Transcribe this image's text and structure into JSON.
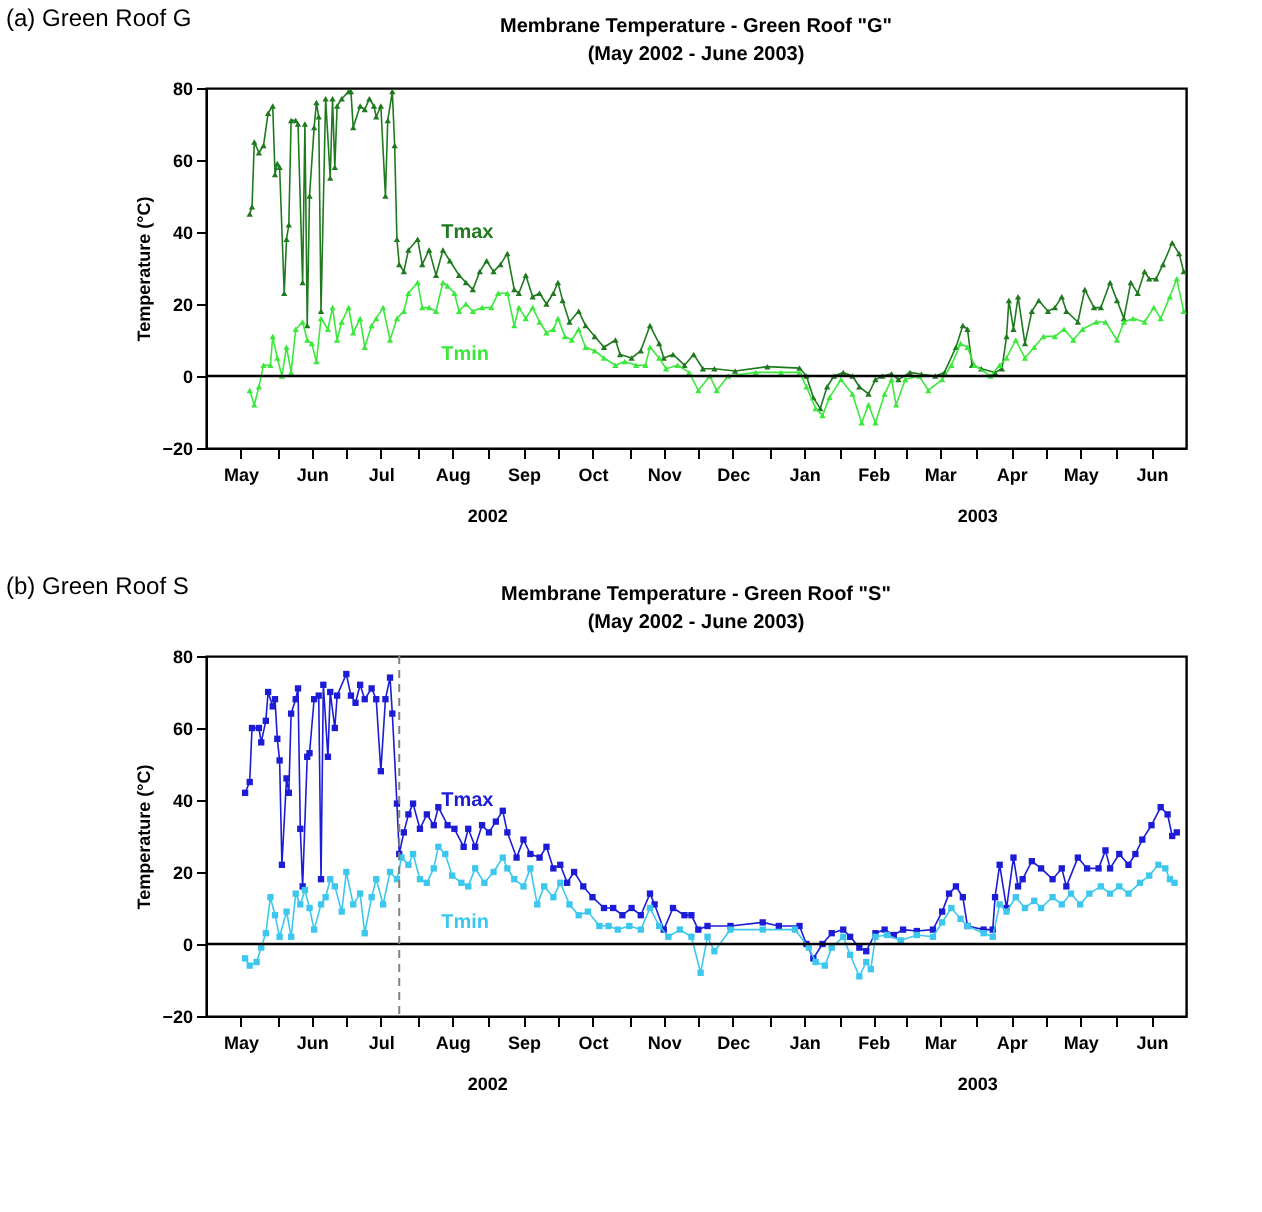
{
  "chart_data": [
    {
      "type": "line",
      "title": "Membrane Temperature - Green Roof \"G\"",
      "subtitle": "(May 2002 - June 2003)",
      "ylabel": "Temperature (°C)",
      "annotations": [
        "(a) Green Roof G",
        "2002",
        "2003"
      ],
      "marker": "triangle",
      "grid": false,
      "xlim": [
        "2002-05-01",
        "2003-07-01"
      ],
      "ylim": [
        -20,
        80
      ],
      "yticks": [
        -20,
        0,
        20,
        40,
        60,
        80
      ],
      "xticks": [
        {
          "value": "2002-05-16",
          "label": "May"
        },
        {
          "value": "2002-06-01",
          "label": null
        },
        {
          "value": "2002-06-16",
          "label": "Jun"
        },
        {
          "value": "2002-07-01",
          "label": null
        },
        {
          "value": "2002-07-16",
          "label": "Jul"
        },
        {
          "value": "2002-08-01",
          "label": null
        },
        {
          "value": "2002-08-16",
          "label": "Aug"
        },
        {
          "value": "2002-09-01",
          "label": null
        },
        {
          "value": "2002-09-16",
          "label": "Sep"
        },
        {
          "value": "2002-10-01",
          "label": null
        },
        {
          "value": "2002-10-16",
          "label": "Oct"
        },
        {
          "value": "2002-11-01",
          "label": null
        },
        {
          "value": "2002-11-16",
          "label": "Nov"
        },
        {
          "value": "2002-12-01",
          "label": null
        },
        {
          "value": "2002-12-16",
          "label": "Dec"
        },
        {
          "value": "2003-01-01",
          "label": null
        },
        {
          "value": "2003-01-16",
          "label": "Jan"
        },
        {
          "value": "2003-02-01",
          "label": null
        },
        {
          "value": "2003-02-15",
          "label": "Feb"
        },
        {
          "value": "2003-03-01",
          "label": null
        },
        {
          "value": "2003-03-16",
          "label": "Mar"
        },
        {
          "value": "2003-04-01",
          "label": null
        },
        {
          "value": "2003-04-16",
          "label": "Apr"
        },
        {
          "value": "2003-05-01",
          "label": null
        },
        {
          "value": "2003-05-16",
          "label": "May"
        },
        {
          "value": "2003-06-01",
          "label": null
        },
        {
          "value": "2003-06-16",
          "label": "Jun"
        }
      ],
      "ref_lines": [
        {
          "axis": "y",
          "value": 0,
          "color": "#000000",
          "line_style": "solid"
        }
      ],
      "series": [
        {
          "name": "Tmax",
          "color": "#1f7a1f",
          "x": [
            "2002-05-20",
            "2002-05-21",
            "2002-05-22",
            "2002-05-24",
            "2002-05-26",
            "2002-05-28",
            "2002-05-30",
            "2002-05-31",
            "2002-06-01",
            "2002-06-02",
            "2002-06-04",
            "2002-06-05",
            "2002-06-06",
            "2002-06-07",
            "2002-06-09",
            "2002-06-10",
            "2002-06-12",
            "2002-06-13",
            "2002-06-14",
            "2002-06-15",
            "2002-06-17",
            "2002-06-18",
            "2002-06-19",
            "2002-06-20",
            "2002-06-22",
            "2002-06-24",
            "2002-06-25",
            "2002-06-26",
            "2002-06-27",
            "2002-06-29",
            "2002-07-02",
            "2002-07-03",
            "2002-07-04",
            "2002-07-07",
            "2002-07-09",
            "2002-07-11",
            "2002-07-13",
            "2002-07-14",
            "2002-07-16",
            "2002-07-18",
            "2002-07-19",
            "2002-07-21",
            "2002-07-22",
            "2002-07-23",
            "2002-07-24",
            "2002-07-26",
            "2002-07-28",
            "2002-08-01",
            "2002-08-03",
            "2002-08-06",
            "2002-08-09",
            "2002-08-12",
            "2002-08-15",
            "2002-08-19",
            "2002-08-22",
            "2002-08-25",
            "2002-08-28",
            "2002-08-31",
            "2002-09-03",
            "2002-09-06",
            "2002-09-09",
            "2002-09-12",
            "2002-09-14",
            "2002-09-17",
            "2002-09-20",
            "2002-09-23",
            "2002-09-26",
            "2002-09-29",
            "2002-10-01",
            "2002-10-03",
            "2002-10-06",
            "2002-10-10",
            "2002-10-13",
            "2002-10-17",
            "2002-10-21",
            "2002-10-26",
            "2002-10-28",
            "2002-11-02",
            "2002-11-06",
            "2002-11-10",
            "2002-11-14",
            "2002-11-16",
            "2002-11-20",
            "2002-11-25",
            "2002-11-29",
            "2002-12-03",
            "2002-12-08",
            "2002-12-17",
            "2002-12-31",
            "2003-01-14",
            "2003-01-17",
            "2003-01-20",
            "2003-01-23",
            "2003-01-26",
            "2003-01-29",
            "2003-02-02",
            "2003-02-06",
            "2003-02-09",
            "2003-02-13",
            "2003-02-16",
            "2003-02-19",
            "2003-02-23",
            "2003-02-26",
            "2003-03-03",
            "2003-03-08",
            "2003-03-14",
            "2003-03-18",
            "2003-03-23",
            "2003-03-26",
            "2003-03-28",
            "2003-03-30",
            "2003-04-03",
            "2003-04-09",
            "2003-04-12",
            "2003-04-14",
            "2003-04-15",
            "2003-04-17",
            "2003-04-19",
            "2003-04-22",
            "2003-04-25",
            "2003-04-28",
            "2003-05-02",
            "2003-05-05",
            "2003-05-08",
            "2003-05-10",
            "2003-05-15",
            "2003-05-18",
            "2003-05-22",
            "2003-05-25",
            "2003-05-29",
            "2003-06-01",
            "2003-06-04",
            "2003-06-07",
            "2003-06-10",
            "2003-06-13",
            "2003-06-15",
            "2003-06-18",
            "2003-06-21",
            "2003-06-25",
            "2003-06-28",
            "2003-06-30"
          ],
          "values": [
            45,
            47,
            65,
            62,
            64,
            73,
            75,
            56,
            59,
            58,
            23,
            38,
            42,
            71,
            71,
            70,
            26,
            70,
            14,
            50,
            69,
            76,
            72,
            18,
            77,
            55,
            77,
            58,
            75,
            77,
            79,
            79,
            69,
            75,
            74,
            77,
            75,
            72,
            75,
            50,
            71,
            79,
            64,
            38,
            31,
            29,
            35,
            38,
            31,
            35,
            28,
            35,
            32,
            28,
            26,
            24,
            29,
            32,
            29,
            31,
            34,
            24,
            23,
            28,
            22,
            23,
            20,
            23,
            26,
            21,
            15,
            18,
            14,
            11,
            8,
            10,
            6,
            5,
            7,
            14,
            9,
            5,
            6,
            3,
            6,
            2,
            2,
            1.4,
            2.6,
            2.2,
            0,
            -6,
            -9,
            -3,
            0,
            1,
            0,
            -3,
            -5,
            -1,
            0,
            0.6,
            -1,
            1,
            0.5,
            0,
            1,
            8,
            14,
            13,
            3,
            2,
            1,
            2,
            11,
            21,
            13,
            22,
            9,
            18,
            21,
            18,
            19,
            22,
            18,
            15,
            24,
            19,
            19,
            26,
            21,
            16,
            26,
            23,
            29,
            27,
            27,
            31,
            37,
            34,
            29
          ]
        },
        {
          "name": "Tmin",
          "color": "#3be83b",
          "x": [
            "2002-05-20",
            "2002-05-22",
            "2002-05-24",
            "2002-05-26",
            "2002-05-29",
            "2002-05-30",
            "2002-06-01",
            "2002-06-03",
            "2002-06-05",
            "2002-06-07",
            "2002-06-09",
            "2002-06-12",
            "2002-06-14",
            "2002-06-16",
            "2002-06-18",
            "2002-06-20",
            "2002-06-23",
            "2002-06-25",
            "2002-06-27",
            "2002-06-29",
            "2002-07-02",
            "2002-07-04",
            "2002-07-07",
            "2002-07-09",
            "2002-07-12",
            "2002-07-14",
            "2002-07-17",
            "2002-07-20",
            "2002-07-23",
            "2002-07-26",
            "2002-07-28",
            "2002-08-01",
            "2002-08-03",
            "2002-08-06",
            "2002-08-09",
            "2002-08-12",
            "2002-08-14",
            "2002-08-17",
            "2002-08-19",
            "2002-08-22",
            "2002-08-25",
            "2002-08-29",
            "2002-09-02",
            "2002-09-05",
            "2002-09-09",
            "2002-09-12",
            "2002-09-14",
            "2002-09-17",
            "2002-09-20",
            "2002-09-23",
            "2002-09-26",
            "2002-09-29",
            "2002-10-01",
            "2002-10-04",
            "2002-10-07",
            "2002-10-10",
            "2002-10-13",
            "2002-10-17",
            "2002-10-21",
            "2002-10-26",
            "2002-10-30",
            "2002-11-04",
            "2002-11-08",
            "2002-11-10",
            "2002-11-14",
            "2002-11-17",
            "2002-11-22",
            "2002-11-27",
            "2002-12-01",
            "2002-12-06",
            "2002-12-09",
            "2002-12-14",
            "2002-12-26",
            "2003-01-06",
            "2003-01-14",
            "2003-01-17",
            "2003-01-21",
            "2003-01-24",
            "2003-01-27",
            "2003-02-01",
            "2003-02-06",
            "2003-02-10",
            "2003-02-13",
            "2003-02-16",
            "2003-02-20",
            "2003-02-23",
            "2003-02-25",
            "2003-03-01",
            "2003-03-07",
            "2003-03-11",
            "2003-03-17",
            "2003-03-21",
            "2003-03-25",
            "2003-03-28",
            "2003-03-31",
            "2003-04-07",
            "2003-04-11",
            "2003-04-14",
            "2003-04-18",
            "2003-04-22",
            "2003-04-26",
            "2003-04-30",
            "2003-05-05",
            "2003-05-09",
            "2003-05-13",
            "2003-05-17",
            "2003-05-23",
            "2003-05-27",
            "2003-06-01",
            "2003-06-04",
            "2003-06-08",
            "2003-06-13",
            "2003-06-17",
            "2003-06-20",
            "2003-06-24",
            "2003-06-27",
            "2003-06-30"
          ],
          "values": [
            -4,
            -8,
            -3,
            3,
            3,
            11,
            5,
            0,
            8,
            1,
            13,
            15,
            10,
            9,
            4,
            16,
            13,
            19,
            10,
            15,
            19,
            12,
            16,
            8,
            14,
            16,
            19,
            10,
            16,
            18,
            23,
            26,
            19,
            19,
            18,
            26,
            25,
            23,
            18,
            20,
            18,
            19,
            19,
            23,
            23,
            14,
            19,
            16,
            19,
            15,
            12,
            13,
            16,
            11,
            10,
            13,
            8,
            7,
            5,
            3,
            4,
            3,
            3,
            8,
            5,
            2,
            3,
            1,
            -4,
            0,
            -4,
            0,
            1,
            1,
            1,
            -3,
            -9,
            -11,
            -6,
            -1,
            -5,
            -13,
            -8,
            -13,
            -5,
            -1,
            -8,
            -1,
            0,
            -4,
            -1,
            3,
            9,
            8,
            3,
            0,
            3,
            5,
            10,
            5,
            8,
            11,
            11,
            13,
            10,
            13,
            15,
            15,
            10,
            15,
            16,
            15,
            19,
            16,
            22,
            27,
            18
          ]
        }
      ]
    },
    {
      "type": "line",
      "title": "Membrane Temperature - Green Roof \"S\"",
      "subtitle": "(May 2002 - June 2003)",
      "ylabel": "Temperature (°C)",
      "annotations": [
        "(b) Green Roof S",
        "2002",
        "2003"
      ],
      "marker": "square",
      "grid": false,
      "xlim": [
        "2002-05-01",
        "2003-07-01"
      ],
      "ylim": [
        -20,
        80
      ],
      "yticks": [
        -20,
        0,
        20,
        40,
        60,
        80
      ],
      "xticks": [
        {
          "value": "2002-05-16",
          "label": "May"
        },
        {
          "value": "2002-06-01",
          "label": null
        },
        {
          "value": "2002-06-16",
          "label": "Jun"
        },
        {
          "value": "2002-07-01",
          "label": null
        },
        {
          "value": "2002-07-16",
          "label": "Jul"
        },
        {
          "value": "2002-08-01",
          "label": null
        },
        {
          "value": "2002-08-16",
          "label": "Aug"
        },
        {
          "value": "2002-09-01",
          "label": null
        },
        {
          "value": "2002-09-16",
          "label": "Sep"
        },
        {
          "value": "2002-10-01",
          "label": null
        },
        {
          "value": "2002-10-16",
          "label": "Oct"
        },
        {
          "value": "2002-11-01",
          "label": null
        },
        {
          "value": "2002-11-16",
          "label": "Nov"
        },
        {
          "value": "2002-12-01",
          "label": null
        },
        {
          "value": "2002-12-16",
          "label": "Dec"
        },
        {
          "value": "2003-01-01",
          "label": null
        },
        {
          "value": "2003-01-16",
          "label": "Jan"
        },
        {
          "value": "2003-02-01",
          "label": null
        },
        {
          "value": "2003-02-15",
          "label": "Feb"
        },
        {
          "value": "2003-03-01",
          "label": null
        },
        {
          "value": "2003-03-16",
          "label": "Mar"
        },
        {
          "value": "2003-04-01",
          "label": null
        },
        {
          "value": "2003-04-16",
          "label": "Apr"
        },
        {
          "value": "2003-05-01",
          "label": null
        },
        {
          "value": "2003-05-16",
          "label": "May"
        },
        {
          "value": "2003-06-01",
          "label": null
        },
        {
          "value": "2003-06-16",
          "label": "Jun"
        }
      ],
      "ref_lines": [
        {
          "axis": "y",
          "value": 0,
          "color": "#000000",
          "line_style": "solid"
        },
        {
          "axis": "x",
          "value": "2002-07-24",
          "color": "#808080",
          "line_style": "dashed"
        }
      ],
      "series": [
        {
          "name": "Tmax",
          "color": "#1c1cd6",
          "x": [
            "2002-05-18",
            "2002-05-20",
            "2002-05-21",
            "2002-05-24",
            "2002-05-25",
            "2002-05-27",
            "2002-05-28",
            "2002-05-30",
            "2002-05-31",
            "2002-06-01",
            "2002-06-02",
            "2002-06-03",
            "2002-06-05",
            "2002-06-06",
            "2002-06-07",
            "2002-06-09",
            "2002-06-10",
            "2002-06-11",
            "2002-06-12",
            "2002-06-14",
            "2002-06-15",
            "2002-06-17",
            "2002-06-19",
            "2002-06-20",
            "2002-06-21",
            "2002-06-23",
            "2002-06-24",
            "2002-06-26",
            "2002-06-27",
            "2002-07-01",
            "2002-07-03",
            "2002-07-05",
            "2002-07-07",
            "2002-07-09",
            "2002-07-12",
            "2002-07-14",
            "2002-07-16",
            "2002-07-18",
            "2002-07-20",
            "2002-07-21",
            "2002-07-23",
            "2002-07-24",
            "2002-07-26",
            "2002-07-28",
            "2002-07-30",
            "2002-08-02",
            "2002-08-05",
            "2002-08-08",
            "2002-08-10",
            "2002-08-14",
            "2002-08-17",
            "2002-08-21",
            "2002-08-23",
            "2002-08-26",
            "2002-08-29",
            "2002-09-01",
            "2002-09-04",
            "2002-09-07",
            "2002-09-09",
            "2002-09-13",
            "2002-09-16",
            "2002-09-19",
            "2002-09-23",
            "2002-09-26",
            "2002-09-29",
            "2002-10-02",
            "2002-10-05",
            "2002-10-08",
            "2002-10-12",
            "2002-10-16",
            "2002-10-21",
            "2002-10-25",
            "2002-10-29",
            "2002-11-02",
            "2002-11-06",
            "2002-11-10",
            "2002-11-12",
            "2002-11-16",
            "2002-11-20",
            "2002-11-25",
            "2002-11-28",
            "2002-12-01",
            "2002-12-05",
            "2002-12-15",
            "2002-12-29",
            "2003-01-05",
            "2003-01-14",
            "2003-01-17",
            "2003-01-20",
            "2003-01-24",
            "2003-01-28",
            "2003-02-02",
            "2003-02-05",
            "2003-02-09",
            "2003-02-12",
            "2003-02-16",
            "2003-02-20",
            "2003-02-24",
            "2003-02-28",
            "2003-03-06",
            "2003-03-13",
            "2003-03-17",
            "2003-03-20",
            "2003-03-23",
            "2003-03-26",
            "2003-03-28",
            "2003-04-04",
            "2003-04-08",
            "2003-04-09",
            "2003-04-11",
            "2003-04-14",
            "2003-04-17",
            "2003-04-19",
            "2003-04-21",
            "2003-04-25",
            "2003-04-29",
            "2003-05-04",
            "2003-05-08",
            "2003-05-10",
            "2003-05-15",
            "2003-05-19",
            "2003-05-24",
            "2003-05-27",
            "2003-05-29",
            "2003-06-02",
            "2003-06-06",
            "2003-06-09",
            "2003-06-12",
            "2003-06-16",
            "2003-06-20",
            "2003-06-23",
            "2003-06-25",
            "2003-06-27"
          ],
          "values": [
            42,
            45,
            60,
            60,
            56,
            62,
            70,
            66,
            68,
            57,
            51,
            22,
            46,
            42,
            64,
            68,
            71,
            32,
            16,
            52,
            53,
            68,
            69,
            18,
            72,
            52,
            70,
            60,
            69,
            75,
            69,
            67,
            72,
            68,
            71,
            68,
            48,
            68,
            74,
            64,
            39,
            25,
            31,
            36,
            39,
            32,
            36,
            33,
            38,
            33,
            32,
            27,
            32,
            27,
            33,
            31,
            34,
            37,
            31,
            24,
            29,
            25,
            24,
            27,
            21,
            22,
            17,
            20,
            16,
            13,
            10,
            10,
            8,
            10,
            8,
            14,
            11,
            4,
            10,
            8,
            8,
            4,
            5,
            5,
            6,
            5,
            5,
            0,
            -4,
            0,
            3,
            4,
            2,
            -1,
            -2,
            3,
            4,
            2.5,
            4,
            3.6,
            4,
            9,
            14,
            16,
            13,
            5,
            4,
            4,
            13,
            22,
            10,
            24,
            16,
            18,
            23,
            21,
            18,
            21,
            16,
            24,
            21,
            21,
            26,
            21,
            25,
            22,
            25,
            29,
            33,
            38,
            36,
            30,
            31
          ]
        },
        {
          "name": "Tmin",
          "color": "#3cc8ee",
          "x": [
            "2002-05-18",
            "2002-05-20",
            "2002-05-23",
            "2002-05-25",
            "2002-05-27",
            "2002-05-29",
            "2002-05-31",
            "2002-06-02",
            "2002-06-05",
            "2002-06-07",
            "2002-06-09",
            "2002-06-11",
            "2002-06-13",
            "2002-06-15",
            "2002-06-17",
            "2002-06-20",
            "2002-06-22",
            "2002-06-24",
            "2002-06-26",
            "2002-06-29",
            "2002-07-01",
            "2002-07-04",
            "2002-07-07",
            "2002-07-09",
            "2002-07-12",
            "2002-07-14",
            "2002-07-17",
            "2002-07-20",
            "2002-07-23",
            "2002-07-25",
            "2002-07-28",
            "2002-07-30",
            "2002-08-02",
            "2002-08-05",
            "2002-08-08",
            "2002-08-10",
            "2002-08-13",
            "2002-08-16",
            "2002-08-20",
            "2002-08-23",
            "2002-08-26",
            "2002-08-30",
            "2002-09-03",
            "2002-09-07",
            "2002-09-09",
            "2002-09-12",
            "2002-09-16",
            "2002-09-19",
            "2002-09-22",
            "2002-09-25",
            "2002-09-29",
            "2002-10-02",
            "2002-10-06",
            "2002-10-10",
            "2002-10-14",
            "2002-10-19",
            "2002-10-23",
            "2002-10-27",
            "2002-11-01",
            "2002-11-06",
            "2002-11-10",
            "2002-11-14",
            "2002-11-18",
            "2002-11-23",
            "2002-11-28",
            "2002-12-02",
            "2002-12-05",
            "2002-12-08",
            "2002-12-15",
            "2002-12-29",
            "2003-01-12",
            "2003-01-18",
            "2003-01-21",
            "2003-01-25",
            "2003-01-28",
            "2003-02-02",
            "2003-02-05",
            "2003-02-09",
            "2003-02-12",
            "2003-02-14",
            "2003-02-16",
            "2003-02-21",
            "2003-02-27",
            "2003-03-06",
            "2003-03-13",
            "2003-03-17",
            "2003-03-21",
            "2003-03-25",
            "2003-03-28",
            "2003-04-04",
            "2003-04-08",
            "2003-04-11",
            "2003-04-14",
            "2003-04-18",
            "2003-04-22",
            "2003-04-26",
            "2003-04-29",
            "2003-05-04",
            "2003-05-08",
            "2003-05-12",
            "2003-05-16",
            "2003-05-20",
            "2003-05-25",
            "2003-05-29",
            "2003-06-02",
            "2003-06-06",
            "2003-06-11",
            "2003-06-15",
            "2003-06-19",
            "2003-06-22",
            "2003-06-24",
            "2003-06-26"
          ],
          "values": [
            -4,
            -6,
            -5,
            -1,
            3,
            13,
            8,
            2,
            9,
            2,
            14,
            11,
            15,
            10,
            4,
            11,
            13,
            18,
            16,
            9,
            20,
            11,
            14,
            3,
            13,
            18,
            11,
            20,
            18,
            24,
            22,
            25,
            18,
            17,
            21,
            27,
            25,
            19,
            17,
            16,
            21,
            17,
            20,
            24,
            21,
            18,
            16,
            21,
            11,
            16,
            13,
            17,
            11,
            8,
            9,
            5,
            5,
            4,
            5,
            4,
            10,
            5,
            2,
            4,
            2,
            -8,
            2,
            -2,
            4,
            4,
            4,
            -1,
            -5,
            -6,
            -1,
            2,
            -3,
            -9,
            -5,
            -7,
            2,
            2.5,
            1,
            2.5,
            2,
            6,
            10,
            7,
            5,
            3,
            2,
            11,
            9,
            13,
            10,
            12,
            10,
            13,
            11,
            14,
            11,
            14,
            16,
            14,
            16,
            14,
            17,
            19,
            22,
            21,
            18,
            17
          ]
        }
      ]
    }
  ]
}
